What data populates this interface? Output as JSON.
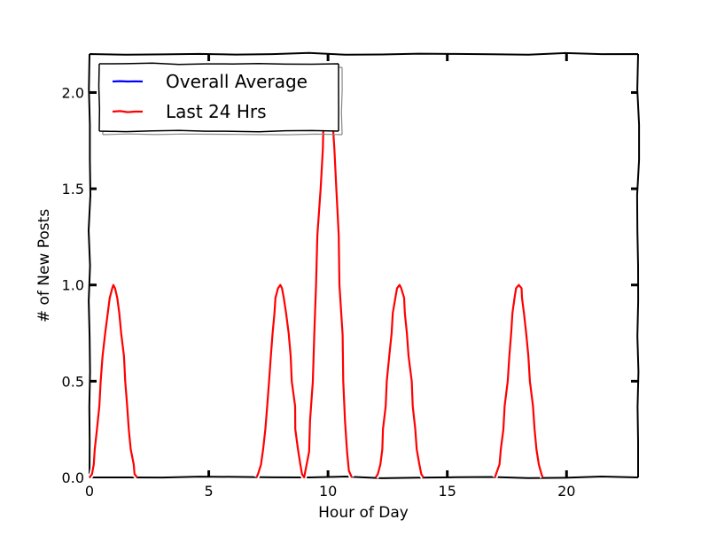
{
  "chart_data": {
    "type": "line",
    "title": "",
    "xlabel": "Hour of Day",
    "ylabel": "# of New Posts",
    "xlim": [
      0,
      23
    ],
    "ylim": [
      0,
      2.2
    ],
    "xticks": [
      0,
      5,
      10,
      15,
      20
    ],
    "xtick_labels": [
      "0",
      "5",
      "10",
      "15",
      "20"
    ],
    "yticks": [
      0.0,
      0.5,
      1.0,
      1.5,
      2.0
    ],
    "ytick_labels": [
      "0.0",
      "0.5",
      "1.0",
      "1.5",
      "2.0"
    ],
    "grid": false,
    "legend_position": "top-left",
    "style": "xkcd",
    "series": [
      {
        "name": "Overall Average",
        "color": "#0000ff",
        "x": [],
        "y": []
      },
      {
        "name": "Last 24 Hrs",
        "color": "#ff0000",
        "segments": [
          {
            "x": [
              0,
              1,
              2
            ],
            "y": [
              0,
              1,
              0
            ]
          },
          {
            "x": [
              7,
              8,
              9,
              10,
              11
            ],
            "y": [
              0,
              1,
              0,
              2,
              0
            ]
          },
          {
            "x": [
              12,
              13,
              14
            ],
            "y": [
              0,
              1,
              0
            ]
          },
          {
            "x": [
              17,
              18,
              19
            ],
            "y": [
              0,
              1,
              0
            ]
          }
        ]
      }
    ]
  }
}
